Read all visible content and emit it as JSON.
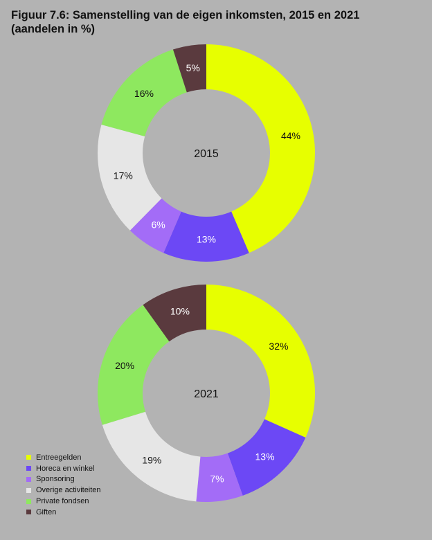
{
  "title": {
    "line1": "Figuur 7.6: Samenstelling van de eigen inkomsten, 2015 en 2021",
    "line2": "(aandelen in %)"
  },
  "chart_data": {
    "type": "pie",
    "categories": [
      "Entreegelden",
      "Horeca en winkel",
      "Sponsoring",
      "Overige activiteiten",
      "Private fondsen",
      "Giften"
    ],
    "colors": [
      "#e7ff00",
      "#6c48f5",
      "#a36cf7",
      "#e6e6e6",
      "#8ee85f",
      "#5a3a3e"
    ],
    "label_colors": [
      "#111111",
      "#ffffff",
      "#ffffff",
      "#111111",
      "#111111",
      "#ffffff"
    ],
    "series": [
      {
        "name": "2015",
        "values": [
          44,
          13,
          6,
          17,
          16,
          5
        ]
      },
      {
        "name": "2021",
        "values": [
          32,
          13,
          7,
          19,
          20,
          10
        ]
      }
    ],
    "value_suffix": "%",
    "legend": "bottom-left"
  }
}
